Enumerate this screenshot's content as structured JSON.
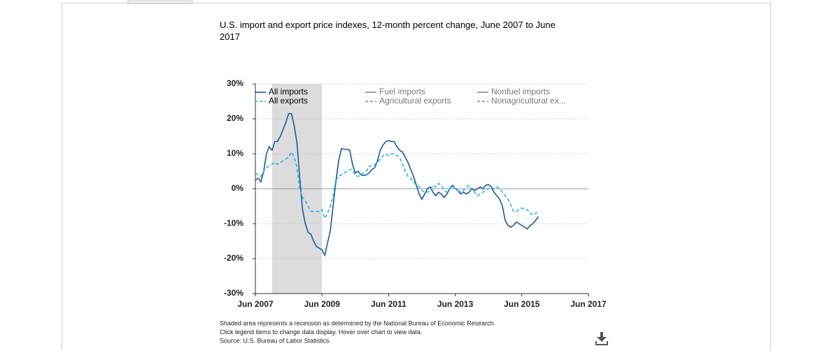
{
  "chart_data": {
    "type": "line",
    "title": "U.S. import and export price indexes, 12-month percent change, June 2007 to June 2017",
    "x": [
      "2007-06",
      "2007-07",
      "2007-08",
      "2007-09",
      "2007-10",
      "2007-11",
      "2007-12",
      "2008-01",
      "2008-02",
      "2008-03",
      "2008-04",
      "2008-05",
      "2008-06",
      "2008-07",
      "2008-08",
      "2008-09",
      "2008-10",
      "2008-11",
      "2008-12",
      "2009-01",
      "2009-02",
      "2009-03",
      "2009-04",
      "2009-05",
      "2009-06",
      "2009-07",
      "2009-08",
      "2009-09",
      "2009-10",
      "2009-11",
      "2009-12",
      "2010-01",
      "2010-02",
      "2010-03",
      "2010-04",
      "2010-05",
      "2010-06",
      "2010-07",
      "2010-08",
      "2010-09",
      "2010-10",
      "2010-11",
      "2010-12",
      "2011-01",
      "2011-02",
      "2011-03",
      "2011-04",
      "2011-05",
      "2011-06",
      "2011-07",
      "2011-08",
      "2011-09",
      "2011-10",
      "2011-11",
      "2011-12",
      "2012-01",
      "2012-02",
      "2012-03",
      "2012-04",
      "2012-05",
      "2012-06",
      "2012-07",
      "2012-08",
      "2012-09",
      "2012-10",
      "2012-11",
      "2012-12",
      "2013-01",
      "2013-02",
      "2013-03",
      "2013-04",
      "2013-05",
      "2013-06",
      "2013-07",
      "2013-08",
      "2013-09",
      "2013-10",
      "2013-11",
      "2013-12",
      "2014-01",
      "2014-02",
      "2014-03",
      "2014-04",
      "2014-05",
      "2014-06",
      "2014-07",
      "2014-08",
      "2014-09",
      "2014-10",
      "2014-11",
      "2014-12",
      "2015-01",
      "2015-02",
      "2015-03",
      "2015-04",
      "2015-05",
      "2015-06",
      "2015-07",
      "2015-08",
      "2015-09",
      "2015-10",
      "2015-11",
      "2015-12"
    ],
    "series": [
      {
        "name": "All imports",
        "color": "#1a5a9a",
        "dash": false,
        "values": [
          2.5,
          3,
          2,
          5,
          10,
          12,
          11,
          13.5,
          13.5,
          15,
          17,
          19,
          21.5,
          21.5,
          18,
          13,
          3,
          -6,
          -10,
          -12.5,
          -13,
          -15,
          -16.5,
          -17,
          -17.5,
          -19,
          -15.5,
          -12,
          -5,
          2,
          8,
          11.5,
          11.3,
          11.3,
          11,
          7,
          4.5,
          5,
          4,
          3.8,
          4,
          4.5,
          5.5,
          6,
          8,
          11,
          12.5,
          13.5,
          13.8,
          13.5,
          13.5,
          12,
          11,
          10.5,
          9,
          7.5,
          5.5,
          3.5,
          1,
          -1.5,
          -3,
          -1.5,
          0,
          0.5,
          -1,
          -2,
          -1,
          -1.5,
          -2.5,
          -1.5,
          0,
          1,
          0,
          -0.5,
          -1.5,
          -1,
          -1.5,
          -1,
          0,
          -0.5,
          0,
          0.5,
          0,
          1,
          1.2,
          0.5,
          -1,
          -2,
          -3,
          -5,
          -9,
          -10.5,
          -11,
          -10.5,
          -9.5,
          -10,
          -10.5,
          -11,
          -11.5,
          -10.5,
          -10,
          -9,
          -8
        ]
      },
      {
        "name": "All exports",
        "color": "#26b5e8",
        "dash": true,
        "values": [
          4.5,
          4,
          3.5,
          5,
          6,
          6.5,
          7,
          7.5,
          7,
          7.5,
          8,
          8.5,
          9,
          10.5,
          9,
          6,
          0,
          -2.5,
          -3.5,
          -5,
          -6.5,
          -6.5,
          -6.5,
          -6.5,
          -6,
          -8.5,
          -7,
          -5,
          -2,
          2.5,
          3.5,
          4,
          4.5,
          5,
          5.5,
          5.5,
          4,
          3.5,
          4,
          4.5,
          5,
          6.5,
          6.5,
          7,
          7.5,
          8.5,
          9.5,
          10,
          9.5,
          10,
          10,
          9.5,
          9,
          7,
          5,
          3.5,
          3,
          2,
          1,
          0.5,
          -0.5,
          -1,
          -1,
          -0.5,
          1,
          0.5,
          1.5,
          1,
          -0.5,
          -1,
          0,
          0.5,
          0,
          -0.5,
          -1,
          -0.5,
          0.5,
          1,
          -0.5,
          -1,
          -2,
          -1.5,
          -1,
          -0.5,
          0,
          0.5,
          0,
          0.5,
          0,
          -1,
          -2,
          -3,
          -4.5,
          -6.5,
          -6.5,
          -6,
          -5.5,
          -6,
          -6,
          -7,
          -7.5,
          -7,
          -6.5
        ]
      }
    ],
    "inactive_series": [
      {
        "name": "Fuel imports",
        "color": "#8a8a8a",
        "dash": false
      },
      {
        "name": "Agricultural exports",
        "color": "#8a8a8a",
        "dash": true
      },
      {
        "name": "Nonfuel imports",
        "color": "#8a8a8a",
        "dash": false
      },
      {
        "name": "Nonagricultural ex...",
        "color": "#8a8a8a",
        "dash": true
      }
    ],
    "recession": [
      "2007-12",
      "2009-06"
    ],
    "xlim": [
      "2007-06",
      "2017-06"
    ],
    "xticks": [
      {
        "value": "2007-06",
        "label": "Jun 2007"
      },
      {
        "value": "2009-06",
        "label": "Jun 2009"
      },
      {
        "value": "2011-06",
        "label": "Jun 2011"
      },
      {
        "value": "2013-06",
        "label": "Jun 2013"
      },
      {
        "value": "2015-06",
        "label": "Jun 2015"
      },
      {
        "value": "2017-06",
        "label": "Jun 2017"
      }
    ],
    "ylim": [
      -30,
      30
    ],
    "yticks": [
      {
        "value": -30,
        "label": "-30%"
      },
      {
        "value": -20,
        "label": "-20%"
      },
      {
        "value": -10,
        "label": "-10%"
      },
      {
        "value": 0,
        "label": "0%"
      },
      {
        "value": 10,
        "label": "10%"
      },
      {
        "value": 20,
        "label": "20%"
      },
      {
        "value": 30,
        "label": "30%"
      }
    ],
    "grid": true,
    "notes": [
      "Shaded area represents a recession as determined by the National Bureau of Economic Research.",
      "Click legend items to change data display. Hover over chart to view data.",
      "Source: U.S. Bureau of Labor Statistics."
    ]
  }
}
